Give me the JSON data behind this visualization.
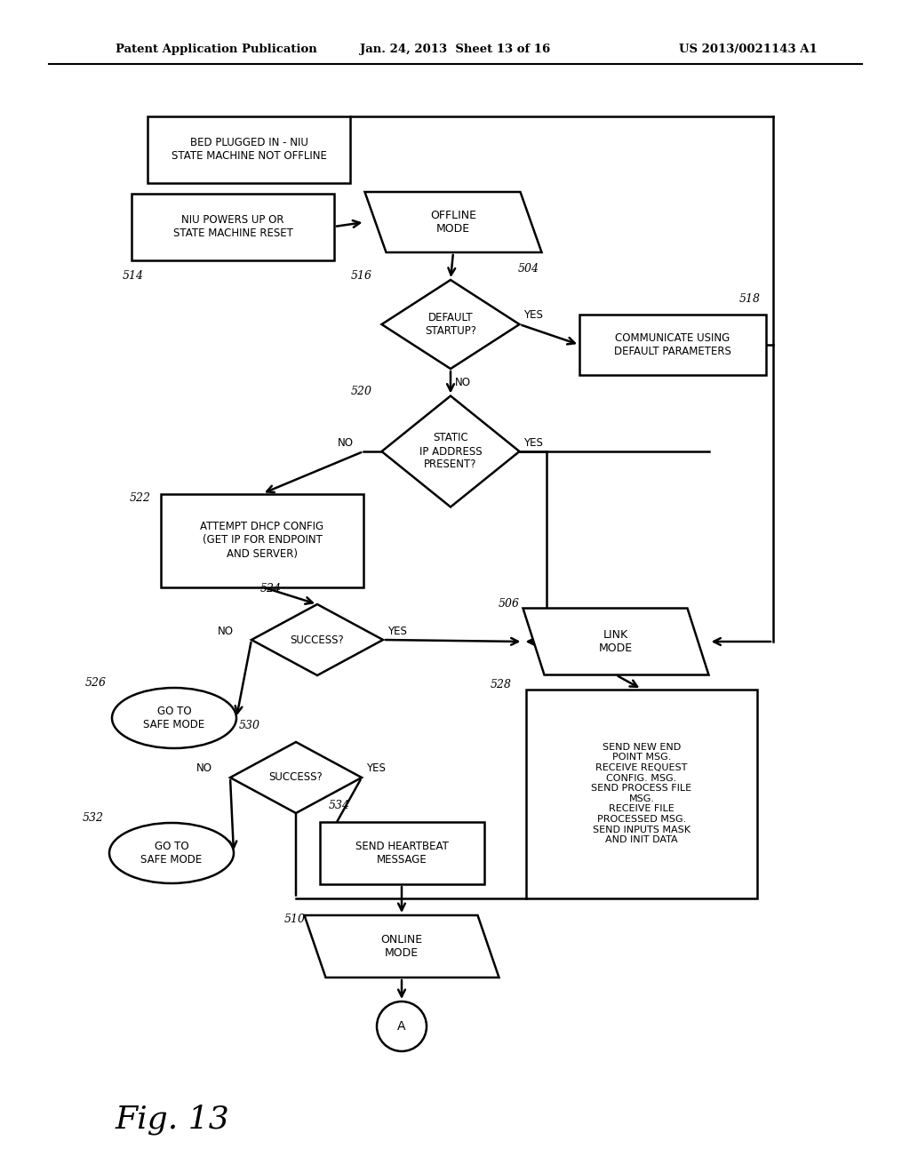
{
  "bg_color": "#ffffff",
  "header_left": "Patent Application Publication",
  "header_mid": "Jan. 24, 2013  Sheet 13 of 16",
  "header_right": "US 2013/0021143 A1",
  "fig_label": "Fig. 13"
}
